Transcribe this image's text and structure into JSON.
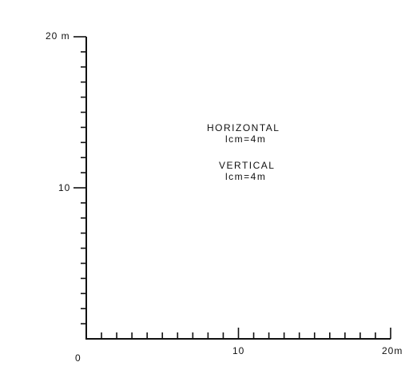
{
  "chart_data": {
    "type": "grid-scale-frame",
    "y_axis": {
      "range": [
        0,
        20
      ],
      "unit": "m",
      "labels": [
        "10",
        "20 m"
      ],
      "major_ticks": [
        10,
        20
      ],
      "minor_tick_step": 1
    },
    "x_axis": {
      "range": [
        0,
        20
      ],
      "unit": "m",
      "labels": [
        "0",
        "10",
        "20m"
      ],
      "major_ticks": [
        10,
        20
      ],
      "minor_tick_step": 1
    },
    "scale_note": {
      "horizontal_title": "HORIZONTAL",
      "horizontal_scale": "lcm=4m",
      "vertical_title": "VERTICAL",
      "vertical_scale": "lcm=4m"
    }
  },
  "colors": {
    "ink": "#111111",
    "background": "#ffffff"
  }
}
